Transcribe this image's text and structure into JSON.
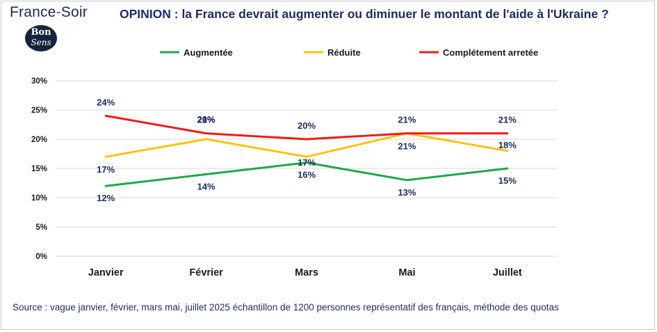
{
  "brand": {
    "name_left": "France",
    "dash": "-",
    "name_right": "Soir"
  },
  "logo": {
    "line1": "Bon",
    "line2": "Sens"
  },
  "chart_data": {
    "type": "line",
    "title": "OPINION : la France devrait augmenter ou diminuer le montant de l'aide à l'Ukraine ?",
    "categories": [
      "Janvier",
      "Février",
      "Mars",
      "Mai",
      "Juillet"
    ],
    "series": [
      {
        "name": "Augmentée",
        "color": "#1ea84a",
        "values": [
          12,
          14,
          16,
          13,
          15
        ],
        "labels": [
          "12%",
          "14%",
          "16%",
          "13%",
          "15%"
        ]
      },
      {
        "name": "Réduite",
        "color": "#ffc20e",
        "values": [
          17,
          20,
          17,
          21,
          18
        ],
        "labels": [
          "17%",
          "20%",
          "17%",
          "21%",
          "18%"
        ]
      },
      {
        "name": "Complétement arretée",
        "color": "#ee1c1c",
        "values": [
          24,
          21,
          20,
          21,
          21
        ],
        "labels": [
          "24%",
          "21%",
          "20%",
          "21%",
          "21%"
        ]
      }
    ],
    "yticks": [
      "0%",
      "5%",
      "10%",
      "15%",
      "20%",
      "25%",
      "30%"
    ],
    "ylim": [
      0,
      30
    ],
    "grid": true,
    "legend": "top",
    "xlabel": "",
    "ylabel": "",
    "label_color": "#1c2c5c"
  },
  "source": "Source : vague janvier, février, mars  mai, juillet 2025 échantillon de 1200 personnes représentatif des français, méthode des quotas"
}
